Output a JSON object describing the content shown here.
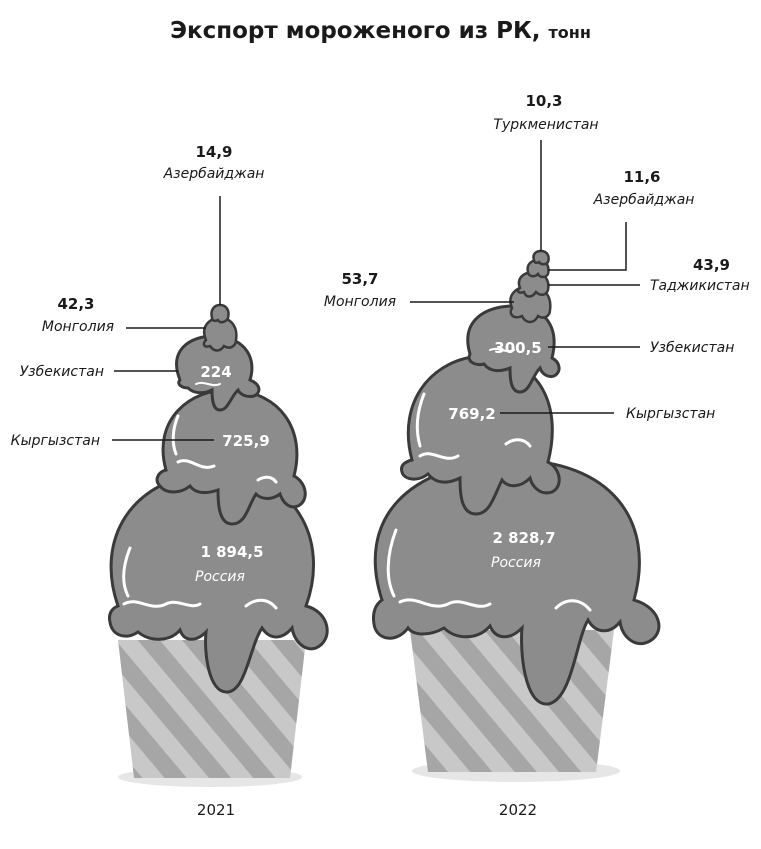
{
  "chart_data": {
    "type": "other",
    "title": "Экспорт мороженого из РК,",
    "unit": "тонн",
    "series": [
      {
        "year": "2021",
        "values": [
          {
            "country": "Россия",
            "value": "1 894,5"
          },
          {
            "country": "Кыргызстан",
            "value": "725,9"
          },
          {
            "country": "Узбекистан",
            "value": "224"
          },
          {
            "country": "Монголия",
            "value": "42,3"
          },
          {
            "country": "Азербайджан",
            "value": "14,9"
          }
        ]
      },
      {
        "year": "2022",
        "values": [
          {
            "country": "Россия",
            "value": "2 828,7"
          },
          {
            "country": "Кыргызстан",
            "value": "769,2"
          },
          {
            "country": "Узбекистан",
            "value": "300,5"
          },
          {
            "country": "Монголия",
            "value": "53,7"
          },
          {
            "country": "Таджикистан",
            "value": "43,9"
          },
          {
            "country": "Азербайджан",
            "value": "11,6"
          },
          {
            "country": "Туркменистан",
            "value": "10,3"
          }
        ]
      }
    ],
    "colors": {
      "scoop": "#8c8c8c",
      "outline": "#3a3a3a",
      "cone": "#c8c8c8",
      "cone_stripe": "#a6a6a6",
      "shadow": "#e6e6e6"
    }
  }
}
